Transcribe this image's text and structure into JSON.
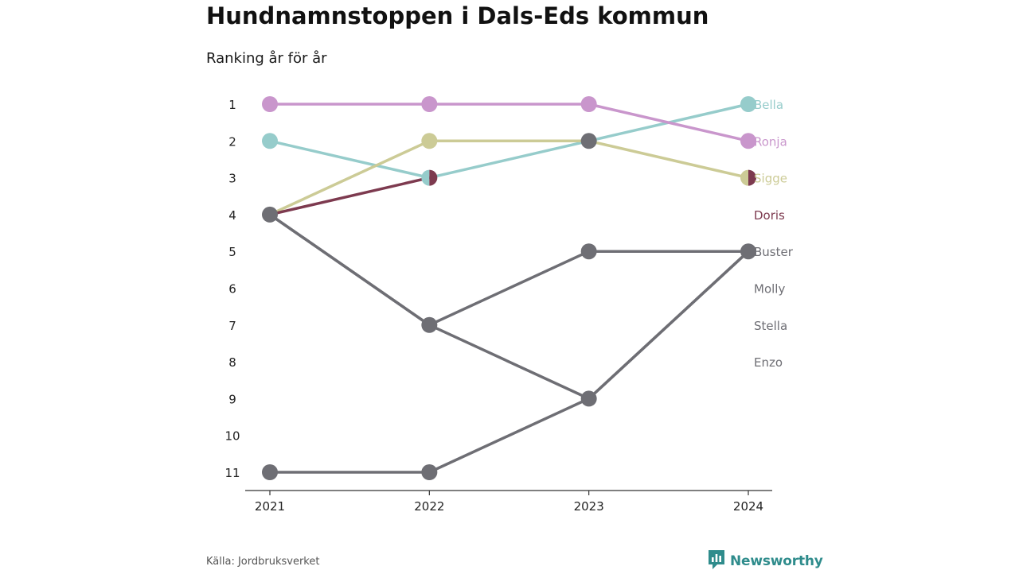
{
  "header": {
    "title": "Hundnamnstoppen i Dals-Eds kommun",
    "subtitle": "Ranking år för år"
  },
  "footer": {
    "source": "Källa: Jordbruksverket",
    "brand": "Newsworthy",
    "brand_icon": "bar-chart-icon",
    "brand_color": "#2f8c8c"
  },
  "chart_data": {
    "type": "line",
    "x": [
      "2021",
      "2022",
      "2023",
      "2024"
    ],
    "y_ticks": [
      1,
      2,
      3,
      4,
      5,
      6,
      7,
      8,
      9,
      10,
      11
    ],
    "ylim": [
      1,
      11
    ],
    "y_inverted": true,
    "grid": false,
    "series": [
      {
        "name": "Bella",
        "color": "#96cccb",
        "values": [
          2,
          3,
          2,
          1
        ]
      },
      {
        "name": "Ronja",
        "color": "#c996cc",
        "values": [
          1,
          1,
          1,
          2
        ]
      },
      {
        "name": "Sigge",
        "color": "#cccb96",
        "values": [
          4,
          2,
          2,
          3
        ]
      },
      {
        "name": "Doris",
        "color": "#7d3a4f",
        "values": [
          4,
          3,
          null,
          3
        ]
      },
      {
        "name": "Buster",
        "color": "#6e6e74",
        "values": [
          4,
          7,
          5,
          5
        ]
      },
      {
        "name": "Molly",
        "color": "#6e6e74",
        "values": [
          null,
          null,
          2,
          null
        ]
      },
      {
        "name": "Stella",
        "color": "#6e6e74",
        "values": [
          4,
          7,
          9,
          5
        ]
      },
      {
        "name": "Enzo",
        "color": "#6e6e74",
        "values": [
          11,
          11,
          9,
          5
        ]
      }
    ]
  }
}
